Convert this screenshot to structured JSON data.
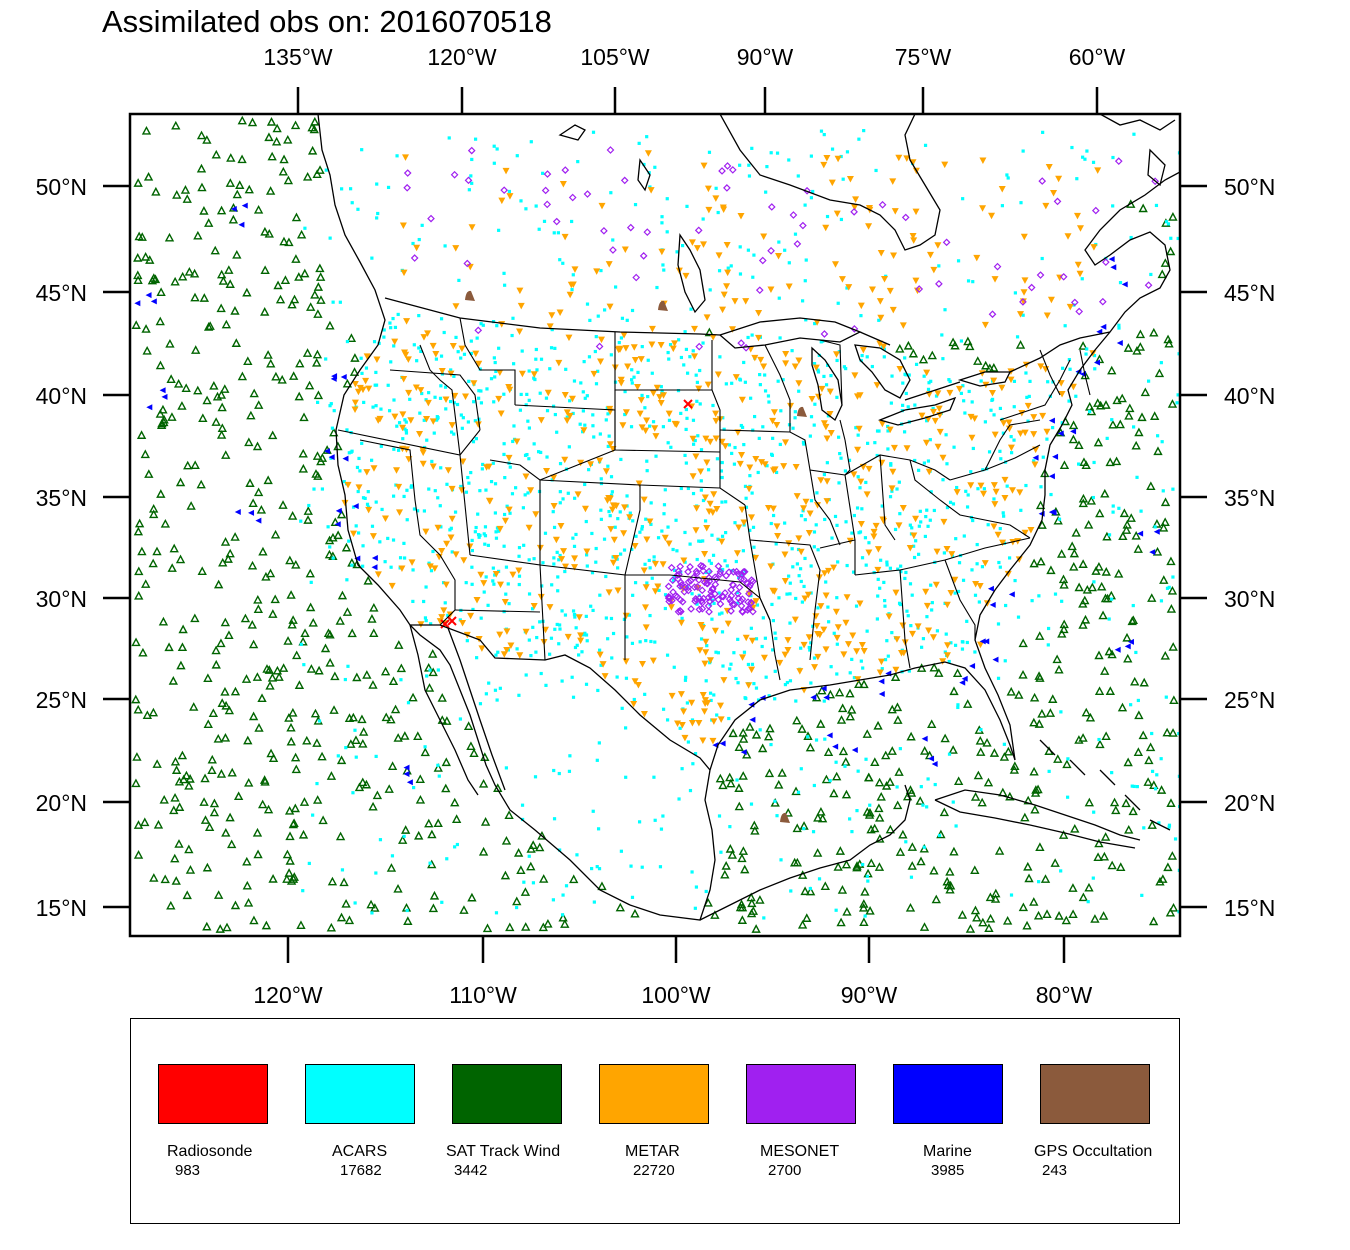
{
  "title": "Assimilated obs on: 2016070518",
  "top_lon_labels": [
    "135°W",
    "120°W",
    "105°W",
    "90°W",
    "75°W",
    "60°W"
  ],
  "bottom_lon_labels": [
    "120°W",
    "110°W",
    "100°W",
    "90°W",
    "80°W"
  ],
  "lat_labels": [
    "50°N",
    "45°N",
    "40°N",
    "35°N",
    "30°N",
    "25°N",
    "20°N",
    "15°N"
  ],
  "legend": [
    {
      "name": "Radiosonde",
      "count": "983",
      "color": "#ff0000"
    },
    {
      "name": "ACARS",
      "count": "17682",
      "color": "#00ffff"
    },
    {
      "name": "SAT Track Wind",
      "count": "3442",
      "color": "#006400"
    },
    {
      "name": "METAR",
      "count": "22720",
      "color": "#ffa500"
    },
    {
      "name": "MESONET",
      "count": "2700",
      "color": "#a020f0"
    },
    {
      "name": "Marine",
      "count": "3985",
      "color": "#0000ff"
    },
    {
      "name": "GPS Occultation",
      "count": "243",
      "color": "#8b5a3c"
    }
  ]
}
